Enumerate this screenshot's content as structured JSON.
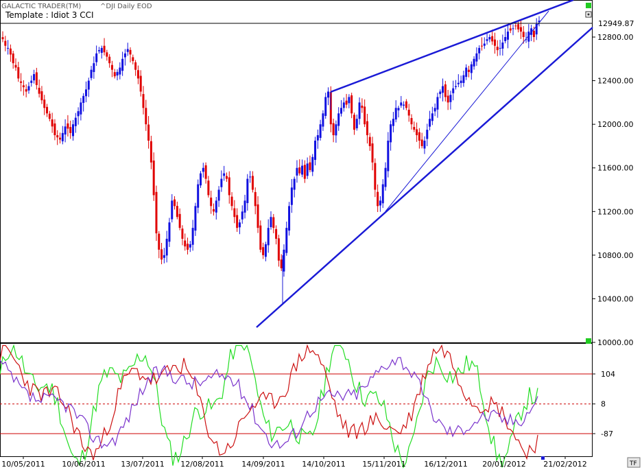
{
  "header": {
    "app_title": "GALACTIC TRADER(TM)",
    "symbol_label": "^DJI Daily EOD",
    "template_label": "Template : Idiot 3 CCI"
  },
  "current_price_label": "12949.87",
  "bottom_right_badge": "TF",
  "colors": {
    "up_candle": "#1010e0",
    "down_candle": "#e00000",
    "trendline": "#1a1ad6",
    "cci_green": "#22dd22",
    "cci_red": "#cc1111",
    "cci_purple": "#7a33cc",
    "ref_line": "#cc0000",
    "panel_marker": "#22cc22"
  },
  "chart_data": [
    {
      "type": "candlestick",
      "symbol": "^DJI",
      "yticks": [
        12800,
        12400,
        12000,
        11600,
        11200,
        10800,
        10400,
        10000
      ],
      "ylim": [
        10000,
        13100
      ],
      "price_marker": 12949.87,
      "x_tick_labels": [
        "10/05/2011",
        "10/06/2011",
        "13/07/2011",
        "12/08/2011",
        "14/09/2011",
        "14/10/2011",
        "15/11/2011",
        "16/12/2011",
        "20/01/2012",
        "21/02/2012"
      ],
      "closes": [
        12780,
        12720,
        12700,
        12640,
        12560,
        12520,
        12420,
        12380,
        12340,
        12300,
        12350,
        12400,
        12460,
        12360,
        12280,
        12220,
        12150,
        12100,
        12050,
        11980,
        11900,
        11880,
        11860,
        11920,
        11980,
        11960,
        11920,
        12000,
        12060,
        12120,
        12200,
        12260,
        12320,
        12400,
        12500,
        12560,
        12650,
        12680,
        12700,
        12660,
        12620,
        12560,
        12500,
        12440,
        12480,
        12520,
        12600,
        12650,
        12690,
        12640,
        12580,
        12500,
        12420,
        12300,
        12150,
        12000,
        11850,
        11650,
        11350,
        11000,
        10850,
        10760,
        10800,
        10950,
        11100,
        11300,
        11250,
        11150,
        11050,
        10950,
        10880,
        10850,
        10900,
        11050,
        11250,
        11450,
        11550,
        11600,
        11500,
        11350,
        11250,
        11200,
        11300,
        11400,
        11500,
        11550,
        11500,
        11350,
        11250,
        11150,
        11050,
        11100,
        11200,
        11300,
        11500,
        11520,
        11400,
        11250,
        11050,
        10850,
        10800,
        10900,
        11050,
        11150,
        11050,
        10950,
        10750,
        10680,
        10850,
        11050,
        11250,
        11420,
        11500,
        11600,
        11550,
        11620,
        11500,
        11640,
        11580,
        11700,
        11850,
        11900,
        12000,
        12100,
        12250,
        12300,
        12000,
        11900,
        12000,
        12100,
        12150,
        12200,
        12180,
        12250,
        12100,
        11950,
        12050,
        12200,
        12150,
        12000,
        11900,
        11800,
        11650,
        11400,
        11250,
        11300,
        11450,
        11600,
        11850,
        12000,
        12050,
        12150,
        12150,
        12200,
        12180,
        12150,
        12080,
        12000,
        11950,
        11900,
        11850,
        11800,
        11850,
        11950,
        12050,
        12100,
        12150,
        12250,
        12300,
        12350,
        12250,
        12200,
        12270,
        12330,
        12350,
        12380,
        12400,
        12450,
        12520,
        12480,
        12550,
        12600,
        12650,
        12700,
        12720,
        12740,
        12780,
        12800,
        12760,
        12720,
        12680,
        12700,
        12750,
        12800,
        12850,
        12860,
        12880,
        12900,
        12870,
        12850,
        12800,
        12780,
        12850,
        12880,
        12800,
        12920,
        12950
      ]
    },
    {
      "type": "line",
      "name": "CCI",
      "yticks": [
        104,
        8,
        -87
      ],
      "ylim": [
        -200,
        200
      ],
      "x_ticks_shared": true
    }
  ]
}
